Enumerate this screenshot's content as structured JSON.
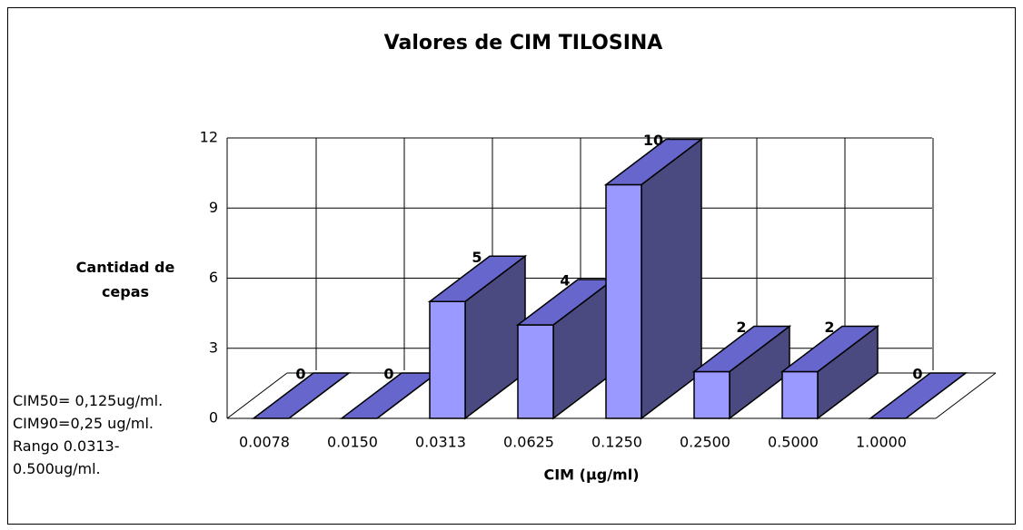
{
  "chart_data": {
    "type": "bar3d",
    "title": "Valores de CIM TILOSINA",
    "x_label": "CIM (µg/ml)",
    "y_label": "Cantidad de cepas",
    "categories": [
      "0.0078",
      "0.0150",
      "0.0313",
      "0.0625",
      "0.1250",
      "0.2500",
      "0.5000",
      "1.0000"
    ],
    "values": [
      0,
      0,
      5,
      4,
      10,
      2,
      2,
      0
    ],
    "color": "#9999ff",
    "ylim": [
      0,
      12
    ],
    "yticks": [
      0,
      3,
      6,
      9,
      12
    ],
    "grid": true,
    "annotations": [
      "CIM50= 0,125ug/ml.",
      "CIM90=0,25 ug/ml.",
      "Rango 0.0313-0.500ug/ml."
    ]
  }
}
